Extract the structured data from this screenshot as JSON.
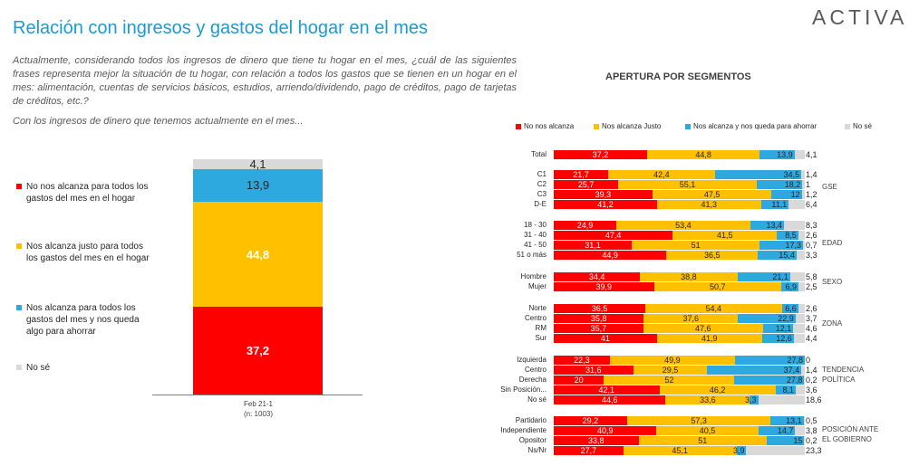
{
  "header": {
    "title": "Relación con ingresos y gastos del hogar en el mes",
    "logo": "ACTIVA"
  },
  "question": "Actualmente, considerando todos los ingresos de dinero que tiene tu hogar en el mes, ¿cuál de las siguientes frases representa mejor la situación de tu hogar, con relación a todos los gastos que se tienen en un hogar en el mes: alimentación, cuentas de servicios básicos, estudios, arriendo/dividendo, pago de créditos, pago de tarjetas de créditos, etc.?",
  "subquestion": "Con los ingresos de dinero que tenemos actualmente en el mes...",
  "colors": {
    "red": "#ff0000",
    "yellow": "#ffc000",
    "blue": "#2ea9df",
    "gray": "#d9d9d9"
  },
  "chart_data": [
    {
      "type": "bar",
      "stacked": true,
      "categories": [
        "Feb 21-1"
      ],
      "x_sublabel": "(n: 1003)",
      "series": [
        {
          "name": "No nos alcanza para todos los gastos del mes en el hogar",
          "values": [
            37.2
          ],
          "color": "#ff0000"
        },
        {
          "name": "Nos alcanza justo para todos los gastos del mes en el hogar",
          "values": [
            44.8
          ],
          "color": "#ffc000"
        },
        {
          "name": "Nos alcanza para todos los gastos del mes y nos queda algo para ahorrar",
          "values": [
            13.9
          ],
          "color": "#2ea9df"
        },
        {
          "name": "No sé",
          "values": [
            4.1
          ],
          "color": "#d9d9d9"
        }
      ]
    },
    {
      "type": "bar",
      "orientation": "horizontal",
      "stacked": true,
      "title": "APERTURA POR SEGMENTOS",
      "legend": [
        "No nos alcanza",
        "Nos alcanza Justo",
        "Nos alcanza y nos queda para ahorrar",
        "No sé"
      ],
      "legend_position": "top",
      "groups": [
        {
          "label": "",
          "rows": [
            {
              "label": "Total",
              "values": [
                37.2,
                44.8,
                13.9,
                4.1
              ]
            }
          ]
        },
        {
          "label": "GSE",
          "rows": [
            {
              "label": "C1",
              "values": [
                21.7,
                42.4,
                34.5,
                1.4
              ]
            },
            {
              "label": "C2",
              "values": [
                25.7,
                55.1,
                18.2,
                1
              ]
            },
            {
              "label": "C3",
              "values": [
                39.3,
                47.5,
                12,
                1.2
              ]
            },
            {
              "label": "D-E",
              "values": [
                41.2,
                41.3,
                11.1,
                6.4
              ]
            }
          ]
        },
        {
          "label": "EDAD",
          "rows": [
            {
              "label": "18 - 30",
              "values": [
                24.9,
                53.4,
                13.4,
                8.3
              ]
            },
            {
              "label": "31 - 40",
              "values": [
                47.4,
                41.5,
                8.5,
                2.6
              ]
            },
            {
              "label": "41 - 50",
              "values": [
                31.1,
                51,
                17.3,
                0.7
              ]
            },
            {
              "label": "51 o más",
              "values": [
                44.9,
                36.5,
                15.4,
                3.3
              ]
            }
          ]
        },
        {
          "label": "SEXO",
          "rows": [
            {
              "label": "Hombre",
              "values": [
                34.4,
                38.8,
                21.1,
                5.8
              ]
            },
            {
              "label": "Mujer",
              "values": [
                39.9,
                50.7,
                6.9,
                2.5
              ]
            }
          ]
        },
        {
          "label": "ZONA",
          "rows": [
            {
              "label": "Norte",
              "values": [
                36.5,
                54.4,
                6.6,
                2.6
              ]
            },
            {
              "label": "Centro",
              "values": [
                35.8,
                37.6,
                22.9,
                3.7
              ]
            },
            {
              "label": "RM",
              "values": [
                35.7,
                47.6,
                12.1,
                4.6
              ]
            },
            {
              "label": "Sur",
              "values": [
                41,
                41.9,
                12.6,
                4.4
              ]
            }
          ]
        },
        {
          "label": "TENDENCIA POLÍTICA",
          "rows": [
            {
              "label": "Izquierda",
              "values": [
                22.3,
                49.9,
                27.8,
                0
              ]
            },
            {
              "label": "Centro",
              "values": [
                31.6,
                29.5,
                37.4,
                1.4
              ]
            },
            {
              "label": "Derecha",
              "values": [
                20,
                52,
                27.8,
                0.2
              ]
            },
            {
              "label": "Sin Posición...",
              "values": [
                42.1,
                46.2,
                8.1,
                3.6
              ]
            },
            {
              "label": "No sé",
              "values": [
                44.6,
                33.6,
                3.3,
                18.6
              ]
            }
          ]
        },
        {
          "label": "POSICIÓN ANTE EL GOBIERNO",
          "rows": [
            {
              "label": "Partidario",
              "values": [
                29.2,
                57.3,
                13.1,
                0.5
              ]
            },
            {
              "label": "Independiente",
              "values": [
                40.9,
                40.5,
                14.7,
                3.8
              ]
            },
            {
              "label": "Opositor",
              "values": [
                33.8,
                51,
                15,
                0.2
              ]
            },
            {
              "label": "Ns/Nr",
              "values": [
                27.7,
                45.1,
                3.9,
                23.3
              ]
            }
          ]
        }
      ]
    }
  ]
}
